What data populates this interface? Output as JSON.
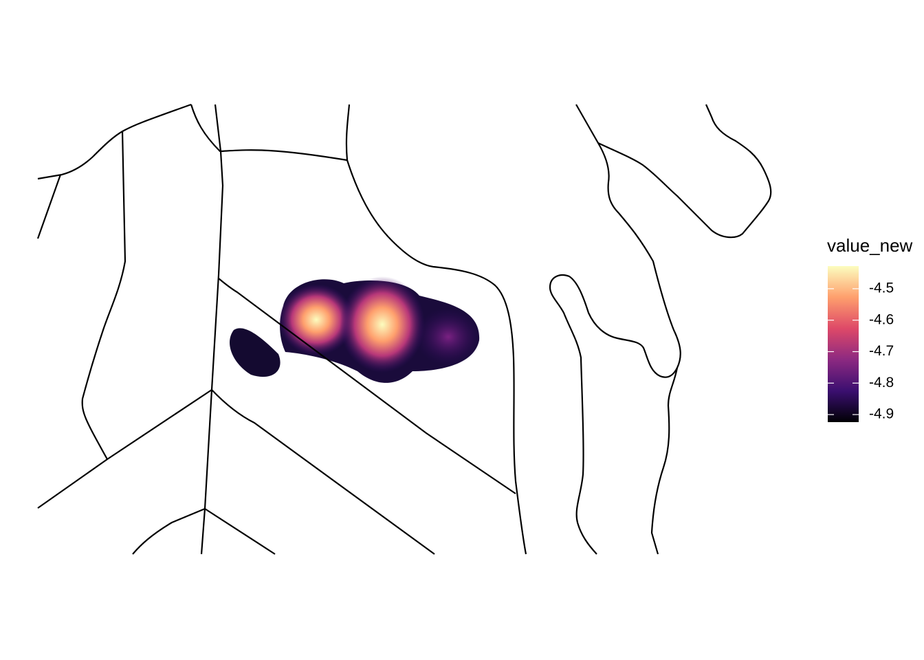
{
  "chart_data": {
    "type": "map",
    "legend": {
      "title": "value_new",
      "limits": [
        -4.924,
        -4.428
      ],
      "ticks": [
        -4.5,
        -4.6,
        -4.7,
        -4.8,
        -4.9
      ],
      "colors": [
        "#000004",
        "#3b0f70",
        "#8c2981",
        "#de4968",
        "#fe9f6d",
        "#fcfdbf"
      ]
    }
  }
}
